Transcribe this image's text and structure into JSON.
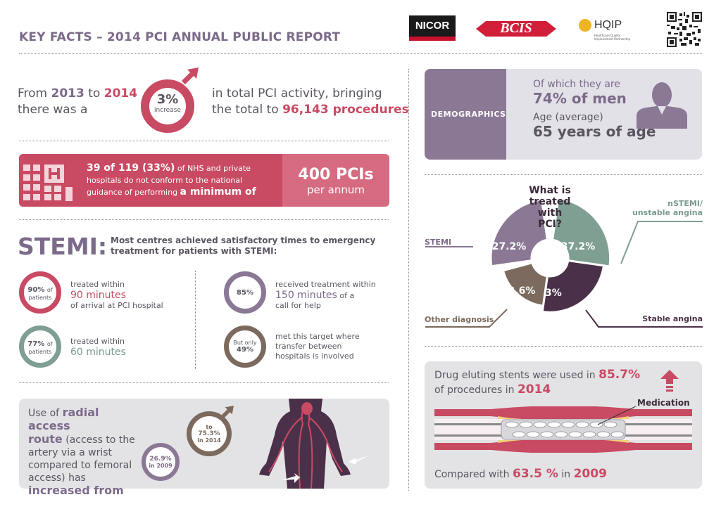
{
  "header": {
    "title": "KEY FACTS – 2014 PCI ANNUAL PUBLIC REPORT",
    "logos": [
      "NICOR",
      "BCIS",
      "HQIP"
    ],
    "hqip_tagline": "Healthcare Quality Improvement Partnership"
  },
  "activity": {
    "line1_a": "From ",
    "year_from": "2013",
    "line1_b": " to ",
    "year_to": "2014",
    "line2": "there was a",
    "pct": "3%",
    "pct_label": "increase",
    "right_line1": "in total PCI activity, bringing",
    "right_line2_a": "the total to ",
    "right_total": "96,143 procedures"
  },
  "centres": {
    "count": "39 of 119 (33%)",
    "text_a": " of NHS and private",
    "text_b": "hospitals do not conform to the national",
    "text_c": "guidance of performing ",
    "text_d": "a minimum of",
    "pcis": "400 PCIs",
    "per_annum": "per annum"
  },
  "stemi": {
    "heading": "STEMI:",
    "intro_1": "Most centres achieved satisfactory times to emergency",
    "intro_2": "treatment for patients with STEMI:",
    "items": [
      {
        "pct": "90%",
        "of": "of",
        "patients": "patients",
        "line1": "treated within",
        "hl": "90 minutes",
        "line3": "of arrival at PCI hospital"
      },
      {
        "pct": "85%",
        "line1": "received treatment within",
        "hl": "150 minutes",
        "hl_suffix": " of a",
        "line3": "call for help"
      },
      {
        "pct": "77%",
        "of": "of",
        "patients": "patients",
        "line1": "treated within",
        "hl": "60 minutes"
      },
      {
        "but": "But only",
        "pct": "49%",
        "line1": "met this target where",
        "line2": "transfer between",
        "line3": "hospitals is involved"
      }
    ]
  },
  "radial": {
    "t1": "Use of ",
    "t1b": "radial access",
    "t2": "route",
    "t2b": " (access to the",
    "t3": "artery via a wrist",
    "t4": "compared to femoral",
    "t5": "access) has",
    "t6": "increased from",
    "from_pct": "26.9%",
    "from_year": "in 2009",
    "to": "to",
    "to_pct": "75.3%",
    "to_year": "in 2014"
  },
  "demographics": {
    "label": "DEMOGRAPHICS",
    "men_label": "Of which they are",
    "men_value": "74% of men",
    "age_label": "Age (average)",
    "age_value": "65 years of age"
  },
  "treated": {
    "question": [
      "What is",
      "treated",
      "with",
      "PCI?"
    ],
    "segments": [
      {
        "name": "STEMI",
        "pct": "27.2%",
        "value": 27.2,
        "color": "#8b7895"
      },
      {
        "name": "nSTEMI/ unstable angina",
        "name1": "nSTEMI/",
        "name2": "unstable angina",
        "pct": "37.2%",
        "value": 37.2,
        "color": "#7f9f93"
      },
      {
        "name": "Stable angina",
        "pct": "33%",
        "value": 33,
        "color": "#4b3049"
      },
      {
        "name": "Other diagnosis",
        "pct": "2.6%",
        "value": 2.6,
        "color": "#7b6a5d"
      }
    ]
  },
  "stents": {
    "l1_a": "Drug eluting stents were used in ",
    "l1_pct": "85.7%",
    "l2_a": "of procedures in ",
    "l2_year": "2014",
    "medication": "Medication",
    "cmp_a": "Compared with ",
    "cmp_pct": "63.5 %",
    "cmp_b": " in ",
    "cmp_year": "2009"
  },
  "colors": {
    "pink": "#c94a63",
    "purple": "#7c6a8a",
    "teal": "#7a9a8f",
    "brown": "#7a6a5e",
    "dark": "#4a3148",
    "grey_panel": "#e6e5e8"
  }
}
